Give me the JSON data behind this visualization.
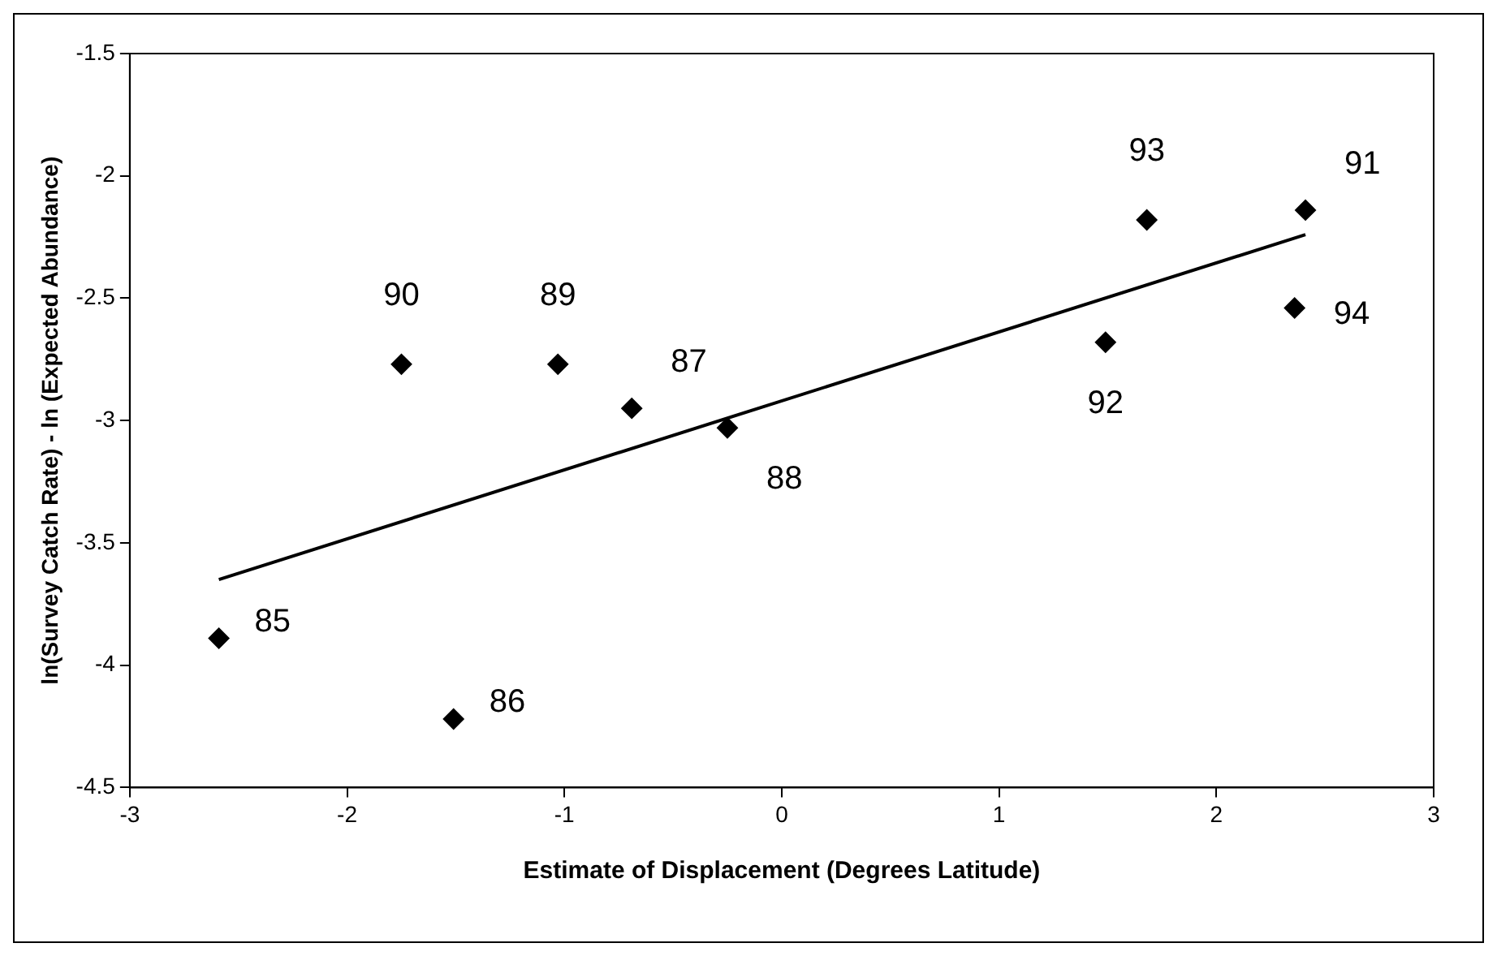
{
  "chart_data": {
    "type": "scatter",
    "xlabel": "Estimate of Displacement (Degrees Latitude)",
    "ylabel": "ln(Survey Catch Rate) - ln (Expected Abundance)",
    "x": [
      -2.59,
      -1.51,
      -0.69,
      -0.25,
      -1.03,
      -1.75,
      2.41,
      1.49,
      1.68,
      2.36
    ],
    "series": [
      {
        "color": "#000000",
        "marker": "diamond",
        "values": [
          -3.89,
          -4.22,
          -2.95,
          -3.03,
          -2.77,
          -2.77,
          -2.14,
          -2.68,
          -2.18,
          -2.54
        ]
      },
      {
        "type": "line",
        "color": "#000000",
        "marker": "none",
        "x": [
          -2.59,
          2.41
        ],
        "values": [
          -3.65,
          -2.24
        ]
      }
    ],
    "xlim": [
      -3,
      3
    ],
    "xticks": [
      -3,
      -2,
      -1,
      0,
      1,
      2,
      3
    ],
    "ylim": [
      -4.5,
      -1.5
    ],
    "yticks": [
      -4.5,
      -4,
      -3.5,
      -3,
      -2.5,
      -2,
      -1.5
    ],
    "line_style": "solid",
    "grid": false,
    "legend": false,
    "annotations": [
      {
        "text": "85",
        "x": -2.59,
        "y": -3.89
      },
      {
        "text": "86",
        "x": -1.51,
        "y": -4.22
      },
      {
        "text": "87",
        "x": -0.69,
        "y": -2.95
      },
      {
        "text": "88",
        "x": -0.25,
        "y": -3.03
      },
      {
        "text": "89",
        "x": -1.03,
        "y": -2.77
      },
      {
        "text": "90",
        "x": -1.75,
        "y": -2.77
      },
      {
        "text": "91",
        "x": 2.41,
        "y": -2.14
      },
      {
        "text": "92",
        "x": 1.49,
        "y": -2.68
      },
      {
        "text": "93",
        "x": 1.68,
        "y": -2.18
      },
      {
        "text": "94",
        "x": 2.36,
        "y": -2.54
      }
    ]
  }
}
